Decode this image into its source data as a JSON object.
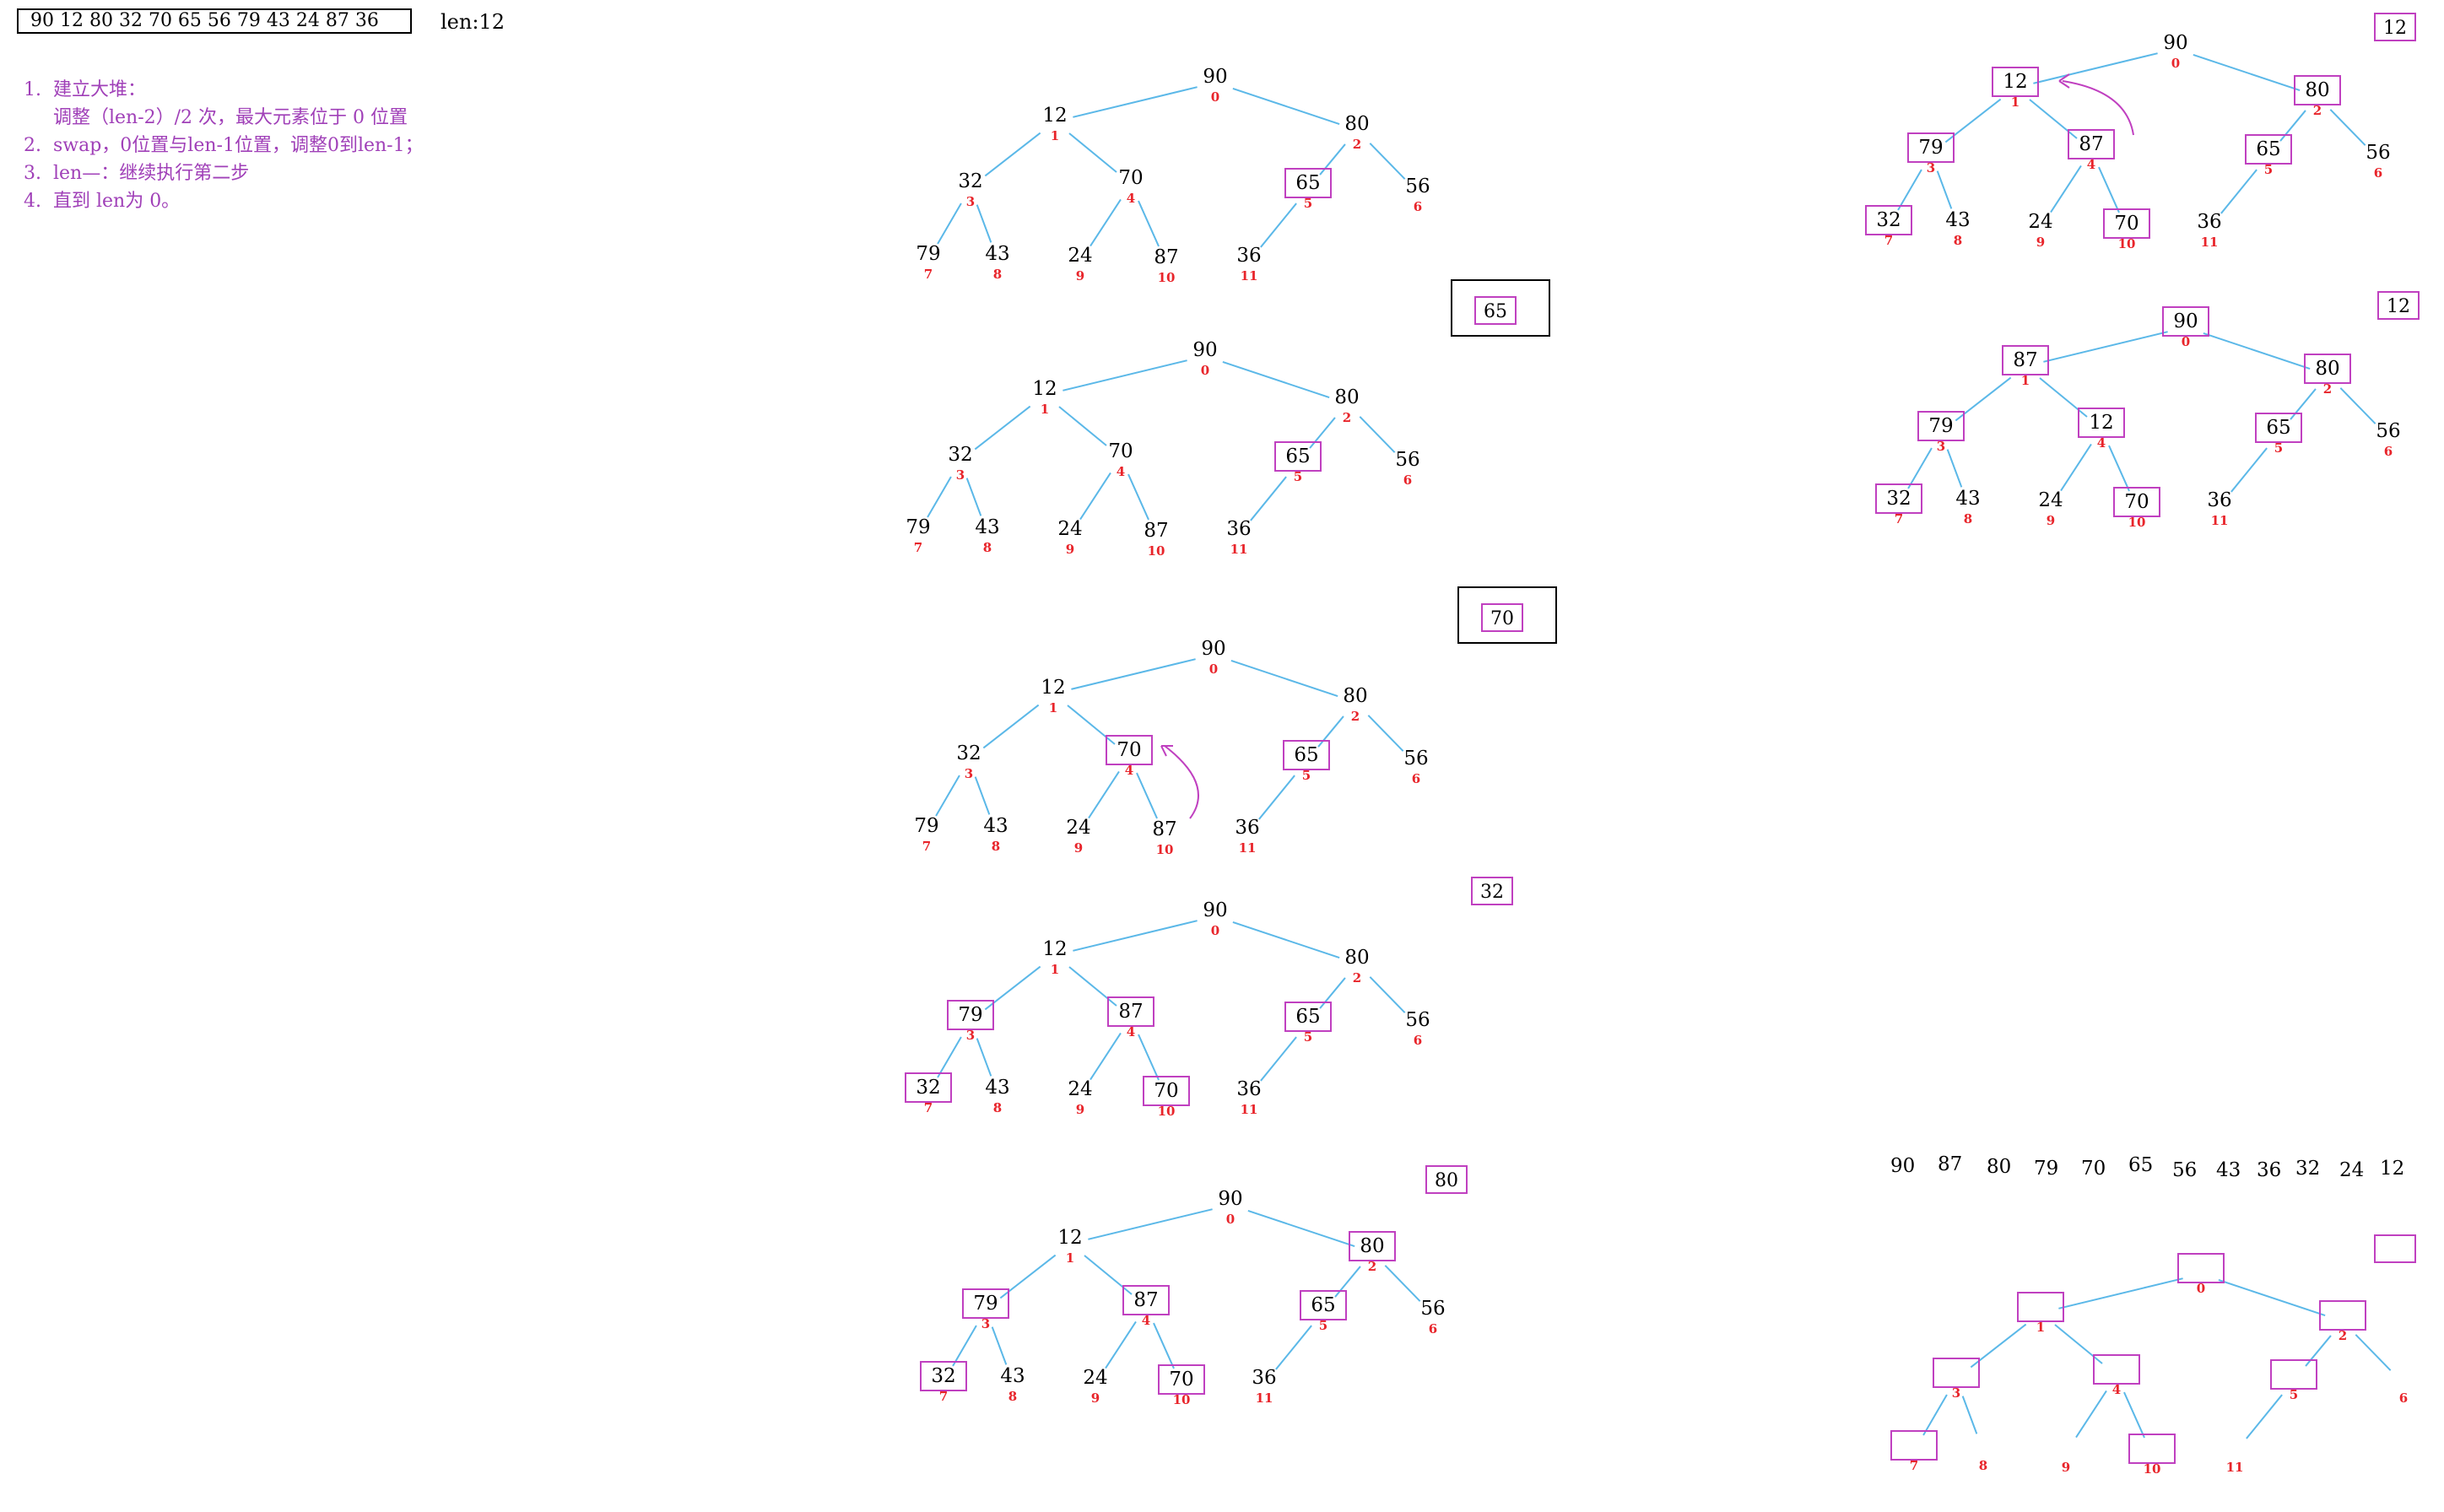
{
  "array_text": "90  12  80  32  70  65  56  79  43  24  87  36",
  "len_label": "len:12",
  "steps": [
    "1.  建立大堆：",
    "     调整（len-2）/2 次，最大元素位于 0 位置",
    "2.  swap，0位置与len-1位置，调整0到len-1；",
    "3.  len—：继续执行第二步",
    "4.  直到 len为 0。"
  ],
  "colors": {
    "edge": "#5bb8e8",
    "index": "#e8242a",
    "box": "#c040c0",
    "text": "#a040b8"
  },
  "trees": [
    {
      "values": [
        "90",
        "12",
        "80",
        "32",
        "70",
        "65",
        "56",
        "79",
        "43",
        "24",
        "87",
        "36"
      ],
      "boxed": [
        5
      ]
    },
    {
      "values": [
        "90",
        "12",
        "80",
        "32",
        "70",
        "65",
        "56",
        "79",
        "43",
        "24",
        "87",
        "36"
      ],
      "boxed": [
        5
      ]
    },
    {
      "values": [
        "90",
        "12",
        "80",
        "32",
        "70",
        "65",
        "56",
        "79",
        "43",
        "24",
        "87",
        "36"
      ],
      "boxed": [
        4,
        5
      ]
    },
    {
      "values": [
        "90",
        "12",
        "80",
        "79",
        "87",
        "65",
        "56",
        "32",
        "43",
        "24",
        "70",
        "36"
      ],
      "boxed": [
        3,
        4,
        5,
        7,
        10
      ]
    },
    {
      "values": [
        "90",
        "12",
        "80",
        "79",
        "87",
        "65",
        "56",
        "32",
        "43",
        "24",
        "70",
        "36"
      ],
      "boxed": [
        2,
        3,
        4,
        5,
        7,
        10
      ]
    },
    {
      "values": [
        "90",
        "12",
        "80",
        "79",
        "87",
        "65",
        "56",
        "32",
        "43",
        "24",
        "70",
        "36"
      ],
      "boxed": [
        1,
        2,
        3,
        4,
        5,
        7,
        10
      ]
    },
    {
      "values": [
        "90",
        "87",
        "80",
        "79",
        "12",
        "65",
        "56",
        "32",
        "43",
        "24",
        "70",
        "36"
      ],
      "boxed": [
        0,
        1,
        2,
        3,
        4,
        5,
        7,
        10
      ]
    },
    {
      "values": [
        "",
        "",
        "",
        "",
        "",
        "",
        "",
        "",
        "",
        "",
        "",
        ""
      ],
      "boxed": [
        0,
        1,
        2,
        3,
        4,
        5,
        7,
        10
      ]
    }
  ],
  "side_labels": [
    "65",
    "70",
    "32",
    "80",
    "12",
    "12"
  ],
  "sorted_values": [
    "90",
    "87",
    "80",
    "79",
    "70",
    "65",
    "56",
    "43",
    "36",
    "32",
    "24",
    "12"
  ]
}
